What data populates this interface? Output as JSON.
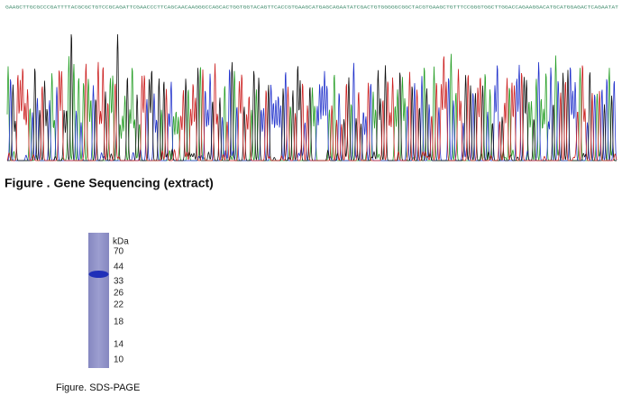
{
  "sequence": "GAAGCTTGCGCCCGATTTTACGCGCTGTCCGCAGATTCGAACCCTTCAGCAACAAGGGCCAGCACTGGTGGTACAGTTCACCGTGAAGCATGAGCAGAATATCGACTGTGGGGGCGGCTACGTGAAGCTGTTTCCGGGTGGCTTGGACCAGAAGGACATGCATGGAGACTCAGAATAT",
  "sequencing_caption": "Figure . Gene Sequencing (extract)",
  "gel": {
    "unit": "kDa",
    "markers": [
      "70",
      "44",
      "33",
      "26",
      "22",
      "18",
      "14",
      "10"
    ]
  },
  "gel_caption": "Figure. SDS-PAGE"
}
